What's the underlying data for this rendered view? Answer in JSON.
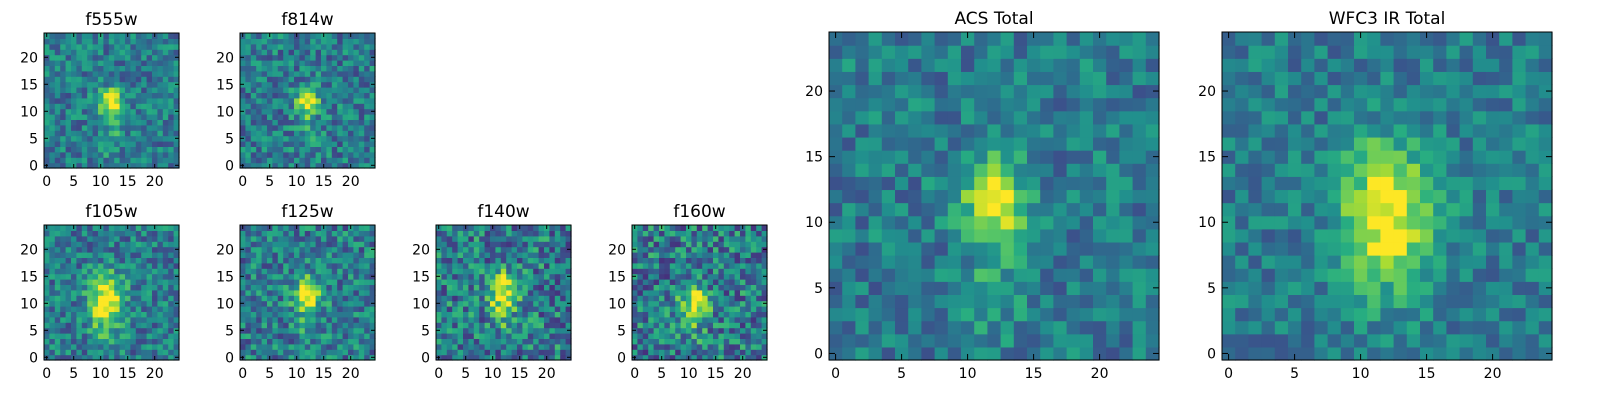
{
  "chart_data": [
    {
      "type": "heatmap",
      "title": "f555w",
      "size": 25,
      "xticks": [
        "0",
        "5",
        "10",
        "15",
        "20"
      ],
      "yticks": [
        "0",
        "5",
        "10",
        "15",
        "20"
      ],
      "peak": [
        12,
        12
      ],
      "spread": [
        1.6,
        1.6
      ],
      "tail": 0.55,
      "noise_seed": 11,
      "noise_level": 0.2
    },
    {
      "type": "heatmap",
      "title": "f814w",
      "size": 25,
      "xticks": [
        "0",
        "5",
        "10",
        "15",
        "20"
      ],
      "yticks": [
        "0",
        "5",
        "10",
        "15",
        "20"
      ],
      "peak": [
        12,
        12
      ],
      "spread": [
        1.5,
        1.7
      ],
      "tail": 0.45,
      "noise_seed": 23,
      "noise_level": 0.22
    },
    {
      "type": "heatmap",
      "title": "f105w",
      "size": 25,
      "xticks": [
        "0",
        "5",
        "10",
        "15",
        "20"
      ],
      "yticks": [
        "0",
        "5",
        "10",
        "15",
        "20"
      ],
      "peak": [
        11,
        11
      ],
      "spread": [
        2.2,
        3.2
      ],
      "tail": 0.5,
      "noise_seed": 37,
      "noise_level": 0.22
    },
    {
      "type": "heatmap",
      "title": "f125w",
      "size": 25,
      "xticks": [
        "0",
        "5",
        "10",
        "15",
        "20"
      ],
      "yticks": [
        "0",
        "5",
        "10",
        "15",
        "20"
      ],
      "peak": [
        12,
        12
      ],
      "spread": [
        1.8,
        2.2
      ],
      "tail": 0.4,
      "noise_seed": 41,
      "noise_level": 0.24
    },
    {
      "type": "heatmap",
      "title": "f140w",
      "size": 25,
      "xticks": [
        "0",
        "5",
        "10",
        "15",
        "20"
      ],
      "yticks": [
        "0",
        "5",
        "10",
        "15",
        "20"
      ],
      "peak": [
        12,
        12
      ],
      "spread": [
        1.8,
        2.6
      ],
      "tail": 0.35,
      "noise_seed": 53,
      "noise_level": 0.28
    },
    {
      "type": "heatmap",
      "title": "f160w",
      "size": 25,
      "xticks": [
        "0",
        "5",
        "10",
        "15",
        "20"
      ],
      "yticks": [
        "0",
        "5",
        "10",
        "15",
        "20"
      ],
      "peak": [
        11,
        10
      ],
      "spread": [
        1.7,
        2.2
      ],
      "tail": 0.3,
      "noise_seed": 67,
      "noise_level": 0.28
    },
    {
      "type": "heatmap",
      "title": "ACS Total",
      "size": 25,
      "xticks": [
        "0",
        "5",
        "10",
        "15",
        "20"
      ],
      "yticks": [
        "0",
        "5",
        "10",
        "15",
        "20"
      ],
      "peak": [
        12,
        12
      ],
      "spread": [
        1.7,
        1.9
      ],
      "tail": 0.6,
      "noise_seed": 79,
      "noise_level": 0.18
    },
    {
      "type": "heatmap",
      "title": "WFC3 IR Total",
      "size": 25,
      "xticks": [
        "0",
        "5",
        "10",
        "15",
        "20"
      ],
      "yticks": [
        "0",
        "5",
        "10",
        "15",
        "20"
      ],
      "peak": [
        12,
        11
      ],
      "spread": [
        2.4,
        3.6
      ],
      "tail": 0.25,
      "noise_seed": 97,
      "noise_level": 0.16
    }
  ],
  "colormap": "viridis"
}
